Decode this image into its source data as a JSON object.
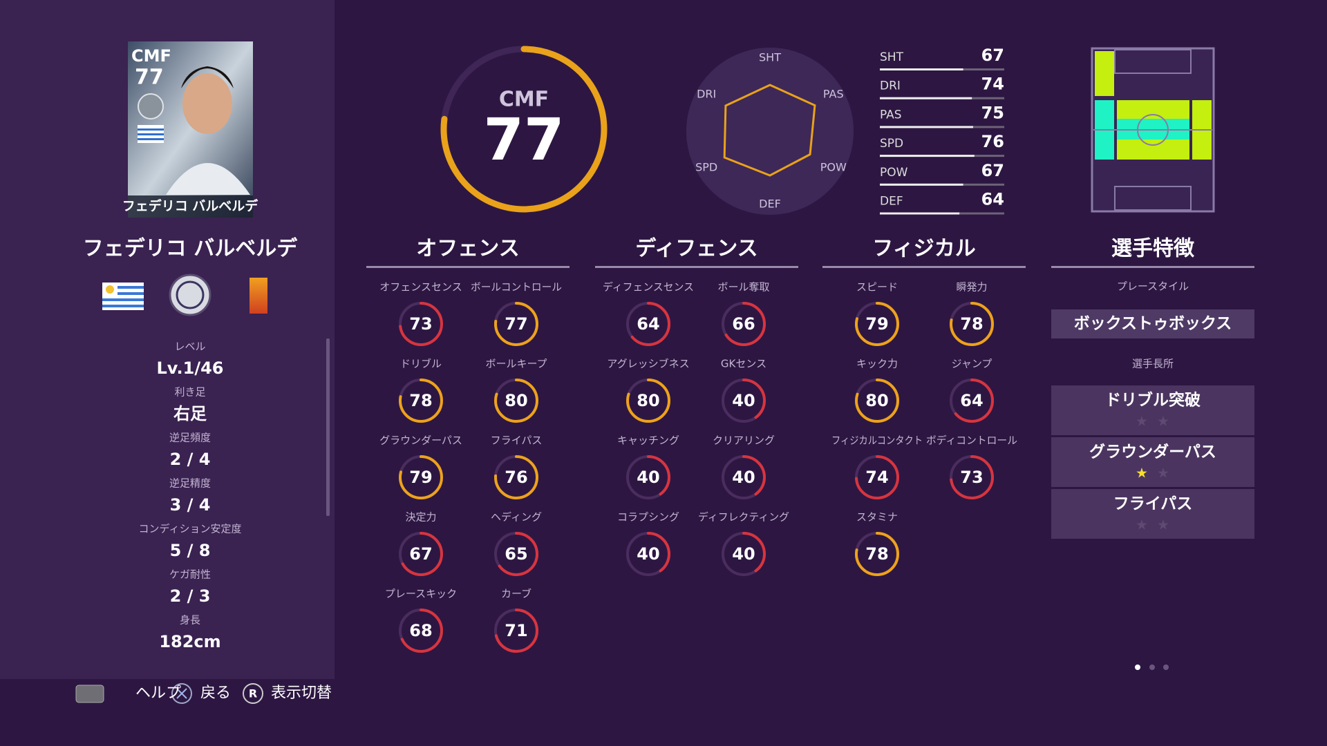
{
  "card": {
    "position": "CMF",
    "rating": 77,
    "name": "フェデリコ バルベルデ"
  },
  "player_name": "フェデリコ バルベルデ",
  "profile": [
    {
      "label": "レベル",
      "value": "Lv.1/46"
    },
    {
      "label": "利き足",
      "value": "右足"
    },
    {
      "label": "逆足頻度",
      "value": "2 / 4"
    },
    {
      "label": "逆足精度",
      "value": "3 / 4"
    },
    {
      "label": "コンディション安定度",
      "value": "5 / 8"
    },
    {
      "label": "ケガ耐性",
      "value": "2 / 3"
    },
    {
      "label": "身長",
      "value": "182cm"
    }
  ],
  "gauge": {
    "position": "CMF",
    "rating": 77
  },
  "radar": {
    "type": "radar",
    "categories": [
      "SHT",
      "PAS",
      "POW",
      "DEF",
      "SPD",
      "DRI"
    ],
    "values": [
      67,
      75,
      67,
      64,
      76,
      74
    ],
    "color": "#e9a21a"
  },
  "summary": [
    {
      "label": "SHT",
      "value": 67
    },
    {
      "label": "DRI",
      "value": 74
    },
    {
      "label": "PAS",
      "value": 75
    },
    {
      "label": "SPD",
      "value": 76
    },
    {
      "label": "POW",
      "value": 67
    },
    {
      "label": "DEF",
      "value": 64
    }
  ],
  "sections": [
    {
      "title": "オフェンス",
      "stats": [
        {
          "label": "オフェンスセンス",
          "value": 73
        },
        {
          "label": "ボールコントロール",
          "value": 77
        },
        {
          "label": "ドリブル",
          "value": 78
        },
        {
          "label": "ボールキープ",
          "value": 80
        },
        {
          "label": "グラウンダーパス",
          "value": 79
        },
        {
          "label": "フライパス",
          "value": 76
        },
        {
          "label": "決定力",
          "value": 67
        },
        {
          "label": "ヘディング",
          "value": 65
        },
        {
          "label": "プレースキック",
          "value": 68
        },
        {
          "label": "カーブ",
          "value": 71
        }
      ]
    },
    {
      "title": "ディフェンス",
      "stats": [
        {
          "label": "ディフェンスセンス",
          "value": 64
        },
        {
          "label": "ボール奪取",
          "value": 66
        },
        {
          "label": "アグレッシブネス",
          "value": 80
        },
        {
          "label": "GKセンス",
          "value": 40
        },
        {
          "label": "キャッチング",
          "value": 40
        },
        {
          "label": "クリアリング",
          "value": 40
        },
        {
          "label": "コラプシング",
          "value": 40
        },
        {
          "label": "ディフレクティング",
          "value": 40
        }
      ]
    },
    {
      "title": "フィジカル",
      "stats": [
        {
          "label": "スピード",
          "value": 79
        },
        {
          "label": "瞬発力",
          "value": 78
        },
        {
          "label": "キック力",
          "value": 80
        },
        {
          "label": "ジャンプ",
          "value": 64
        },
        {
          "label": "フィジカルコンタクト",
          "value": 74
        },
        {
          "label": "ボディコントロール",
          "value": 73
        },
        {
          "label": "スタミナ",
          "value": 78
        }
      ]
    }
  ],
  "traits": {
    "title": "選手特徴",
    "playstyle_label": "プレースタイル",
    "playstyle": "ボックストゥボックス",
    "skills_label": "選手長所",
    "skills": [
      {
        "name": "ドリブル突破",
        "stars": 0
      },
      {
        "name": "グラウンダーパス",
        "stars": 1
      },
      {
        "name": "フライパス",
        "stars": 0
      }
    ]
  },
  "controls": [
    {
      "label": "ヘルプ"
    },
    {
      "label": "戻る"
    },
    {
      "key": "R",
      "label": "表示切替"
    }
  ]
}
